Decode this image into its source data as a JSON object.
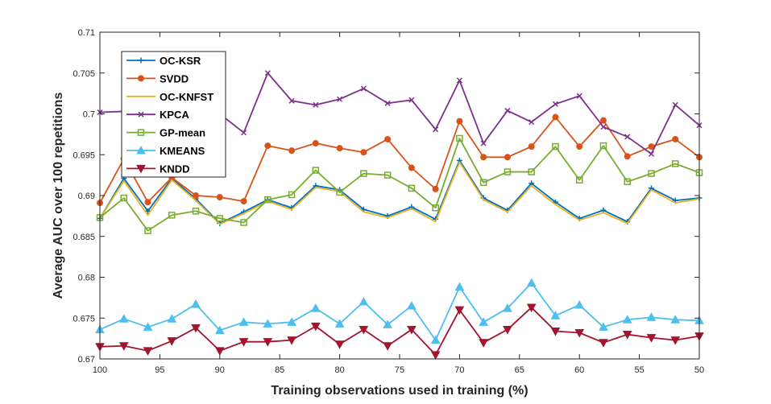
{
  "chart_data": {
    "type": "line",
    "title": "",
    "xlabel": "Training observations used in training (%)",
    "ylabel": "Average AUC over 100 repetitions",
    "xlim": [
      100,
      50
    ],
    "ylim": [
      0.67,
      0.71
    ],
    "x_ticks": [
      100,
      95,
      90,
      85,
      80,
      75,
      70,
      65,
      60,
      55,
      50
    ],
    "y_ticks": [
      0.67,
      0.675,
      0.68,
      0.685,
      0.69,
      0.695,
      0.7,
      0.705,
      0.71
    ],
    "x_tick_labels": [
      "100",
      "95",
      "90",
      "85",
      "80",
      "75",
      "70",
      "65",
      "60",
      "55",
      "50"
    ],
    "y_tick_labels": [
      "0.67",
      "0.675",
      "0.68",
      "0.685",
      "0.69",
      "0.695",
      "0.7",
      "0.705",
      "0.71"
    ],
    "legend_position": "top-left",
    "x": [
      100,
      98,
      96,
      94,
      92,
      90,
      88,
      86,
      84,
      82,
      80,
      78,
      76,
      74,
      72,
      70,
      68,
      66,
      64,
      62,
      60,
      58,
      56,
      54,
      52,
      50
    ],
    "series": [
      {
        "name": "OC-KSR",
        "color": "#0072BD",
        "marker": "plus",
        "values": [
          0.6872,
          0.6921,
          0.6881,
          0.6921,
          0.6896,
          0.6866,
          0.688,
          0.6895,
          0.6885,
          0.6912,
          0.6907,
          0.6883,
          0.6875,
          0.6886,
          0.6871,
          0.6943,
          0.6897,
          0.6882,
          0.6915,
          0.6892,
          0.6872,
          0.6882,
          0.6868,
          0.6909,
          0.6894,
          0.6897
        ]
      },
      {
        "name": "SVDD",
        "color": "#D95319",
        "marker": "circle",
        "values": [
          0.6891,
          0.6945,
          0.6892,
          0.6922,
          0.69,
          0.6898,
          0.6893,
          0.6961,
          0.6955,
          0.6964,
          0.6958,
          0.6953,
          0.6969,
          0.6934,
          0.6908,
          0.6991,
          0.6947,
          0.6947,
          0.696,
          0.6996,
          0.696,
          0.6992,
          0.6948,
          0.696,
          0.6969,
          0.6947
        ]
      },
      {
        "name": "OC-KNFST",
        "color": "#EDB120",
        "marker": "none",
        "values": [
          0.6872,
          0.6918,
          0.6876,
          0.6919,
          0.6894,
          0.6865,
          0.6878,
          0.6893,
          0.6883,
          0.691,
          0.6905,
          0.688,
          0.6873,
          0.6884,
          0.6868,
          0.6941,
          0.6895,
          0.688,
          0.6912,
          0.6889,
          0.687,
          0.6879,
          0.6866,
          0.6907,
          0.6891,
          0.6896
        ]
      },
      {
        "name": "KPCA",
        "color": "#7E2F8E",
        "marker": "x",
        "values": [
          0.7002,
          0.7003,
          0.7005,
          0.7022,
          0.701,
          0.7,
          0.6977,
          0.705,
          0.7016,
          0.7011,
          0.7018,
          0.7031,
          0.7013,
          0.7017,
          0.6981,
          0.7041,
          0.6964,
          0.7004,
          0.699,
          0.7012,
          0.7022,
          0.6984,
          0.6972,
          0.6951,
          0.7011,
          0.6986
        ]
      },
      {
        "name": "GP-mean",
        "color": "#77AC30",
        "marker": "square",
        "values": [
          0.6873,
          0.6897,
          0.6857,
          0.6876,
          0.6881,
          0.6872,
          0.6867,
          0.6895,
          0.6901,
          0.6931,
          0.6904,
          0.6927,
          0.6925,
          0.6909,
          0.6885,
          0.697,
          0.6916,
          0.6929,
          0.6929,
          0.696,
          0.6919,
          0.6961,
          0.6917,
          0.6927,
          0.6939,
          0.6928
        ]
      },
      {
        "name": "KMEANS",
        "color": "#4DBEEE",
        "marker": "triangle-up",
        "values": [
          0.6736,
          0.6749,
          0.6739,
          0.6749,
          0.6767,
          0.6735,
          0.6745,
          0.6743,
          0.6745,
          0.6762,
          0.6743,
          0.677,
          0.6742,
          0.6765,
          0.6723,
          0.6788,
          0.6745,
          0.6762,
          0.6793,
          0.6753,
          0.6766,
          0.6739,
          0.6748,
          0.6751,
          0.6748,
          0.6747
        ]
      },
      {
        "name": "KNDD",
        "color": "#A2142F",
        "marker": "triangle-down",
        "values": [
          0.6715,
          0.6716,
          0.671,
          0.6722,
          0.6738,
          0.671,
          0.6721,
          0.6721,
          0.6723,
          0.674,
          0.6718,
          0.6736,
          0.6716,
          0.6736,
          0.6705,
          0.676,
          0.672,
          0.6736,
          0.6763,
          0.6734,
          0.6732,
          0.672,
          0.673,
          0.6726,
          0.6723,
          0.6728
        ]
      }
    ]
  }
}
